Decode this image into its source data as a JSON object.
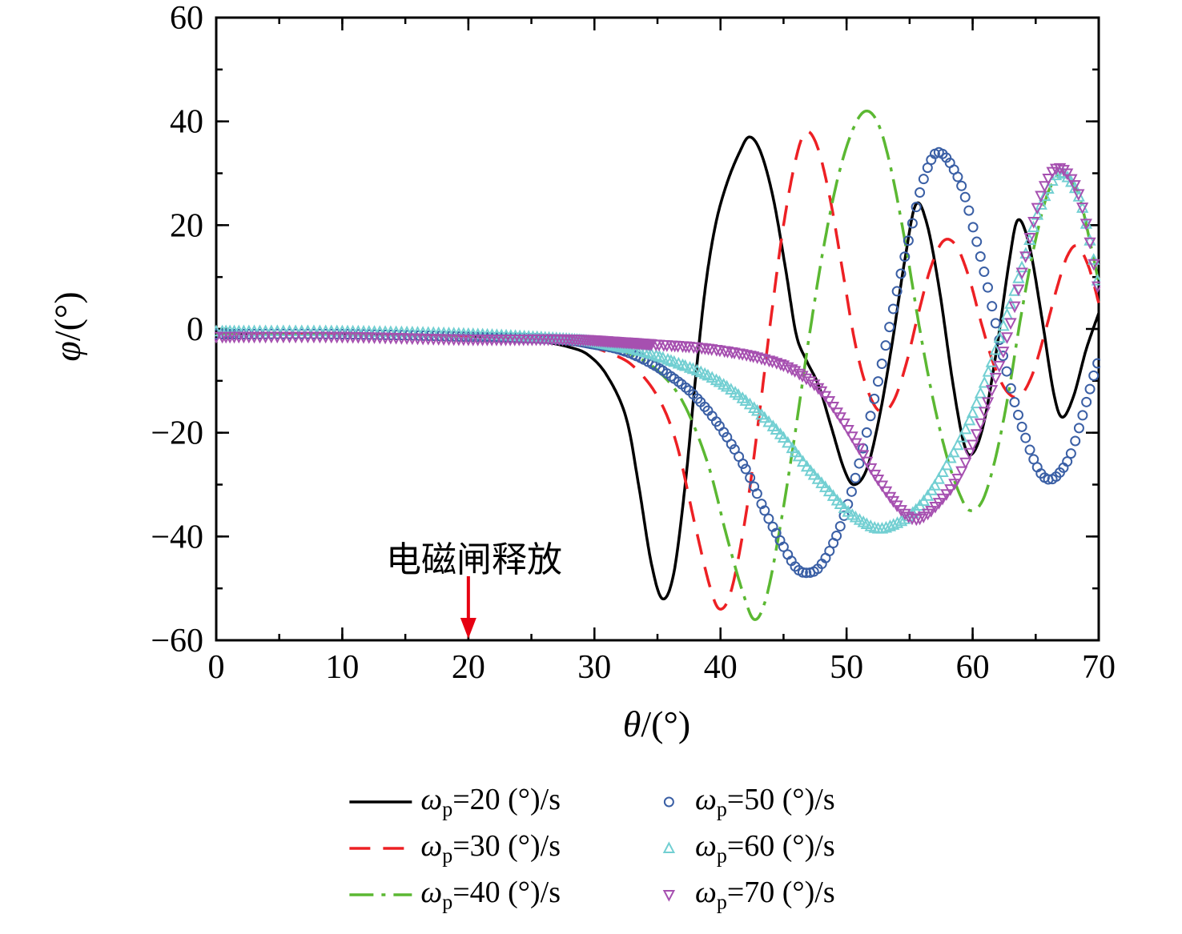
{
  "chart_data": {
    "type": "line",
    "title": "",
    "xlabel_symbol": "θ",
    "xlabel_rest": "/(°)",
    "ylabel_symbol": "φ",
    "ylabel_rest": "/(°)",
    "xlim": [
      0,
      70
    ],
    "ylim": [
      -60,
      60
    ],
    "xticks": [
      0,
      10,
      20,
      30,
      40,
      50,
      60,
      70
    ],
    "yticks": [
      -60,
      -40,
      -20,
      0,
      20,
      40,
      60
    ],
    "x_minor_step": 5,
    "y_minor_step": 10,
    "grid": false,
    "legend_position": "bottom",
    "annotation": {
      "text": "电磁闸释放",
      "x": 20,
      "arrow_color": "#e60012"
    },
    "series": [
      {
        "name": "omega-20",
        "symbol": "ω",
        "sub": "p",
        "label_rest": "=20 (°)/s",
        "color": "#000000",
        "style": "solid",
        "marker": "none",
        "points": [
          [
            0,
            -1
          ],
          [
            5,
            -1
          ],
          [
            10,
            -1
          ],
          [
            15,
            -1.2
          ],
          [
            20,
            -1.5
          ],
          [
            24,
            -2
          ],
          [
            26,
            -2.5
          ],
          [
            28,
            -3.5
          ],
          [
            29.5,
            -5
          ],
          [
            31,
            -9
          ],
          [
            32.5,
            -17
          ],
          [
            33.5,
            -30
          ],
          [
            34.5,
            -45
          ],
          [
            35.4,
            -52
          ],
          [
            36.3,
            -47
          ],
          [
            37.2,
            -30
          ],
          [
            38,
            -10
          ],
          [
            38.8,
            8
          ],
          [
            39.6,
            20
          ],
          [
            40.5,
            28
          ],
          [
            41.5,
            34
          ],
          [
            42.3,
            37
          ],
          [
            43.2,
            34
          ],
          [
            44.2,
            25
          ],
          [
            45.2,
            11
          ],
          [
            46,
            -1
          ],
          [
            46.8,
            -6
          ],
          [
            47.8,
            -11
          ],
          [
            48.8,
            -19
          ],
          [
            49.8,
            -27
          ],
          [
            50.6,
            -30
          ],
          [
            51.6,
            -27
          ],
          [
            52.6,
            -17
          ],
          [
            53.6,
            -3
          ],
          [
            54.6,
            13
          ],
          [
            55.5,
            24
          ],
          [
            56.4,
            20
          ],
          [
            57.4,
            7
          ],
          [
            58.4,
            -10
          ],
          [
            59.3,
            -22
          ],
          [
            60,
            -24
          ],
          [
            60.9,
            -18
          ],
          [
            61.9,
            -4
          ],
          [
            62.9,
            13
          ],
          [
            63.6,
            21
          ],
          [
            64.5,
            16
          ],
          [
            65.5,
            2
          ],
          [
            66.4,
            -12
          ],
          [
            67.1,
            -17
          ],
          [
            68,
            -13
          ],
          [
            69,
            -4
          ],
          [
            70,
            3
          ]
        ]
      },
      {
        "name": "omega-30",
        "symbol": "ω",
        "sub": "p",
        "label_rest": "=30 (°)/s",
        "color": "#ed2024",
        "style": "dashed",
        "marker": "none",
        "points": [
          [
            0,
            -1
          ],
          [
            10,
            -1
          ],
          [
            20,
            -1.5
          ],
          [
            26,
            -2
          ],
          [
            29,
            -3
          ],
          [
            31,
            -4.5
          ],
          [
            33,
            -7
          ],
          [
            35,
            -13
          ],
          [
            36.5,
            -22
          ],
          [
            38,
            -38
          ],
          [
            39.2,
            -50
          ],
          [
            40,
            -54
          ],
          [
            40.9,
            -50
          ],
          [
            42,
            -36
          ],
          [
            43,
            -18
          ],
          [
            44,
            2
          ],
          [
            45,
            20
          ],
          [
            46,
            33
          ],
          [
            46.8,
            38
          ],
          [
            47.7,
            35
          ],
          [
            48.7,
            25
          ],
          [
            49.7,
            11
          ],
          [
            50.7,
            -3
          ],
          [
            51.7,
            -12
          ],
          [
            52.7,
            -16
          ],
          [
            53.7,
            -14
          ],
          [
            54.7,
            -7
          ],
          [
            55.7,
            3
          ],
          [
            56.7,
            12
          ],
          [
            57.7,
            17
          ],
          [
            58.7,
            16
          ],
          [
            59.7,
            10
          ],
          [
            60.7,
            1
          ],
          [
            61.7,
            -7
          ],
          [
            62.7,
            -12
          ],
          [
            63.7,
            -13
          ],
          [
            64.7,
            -9
          ],
          [
            65.7,
            -1
          ],
          [
            66.7,
            8
          ],
          [
            67.5,
            14
          ],
          [
            68.3,
            16
          ],
          [
            69.2,
            12
          ],
          [
            70,
            5
          ]
        ]
      },
      {
        "name": "omega-40",
        "symbol": "ω",
        "sub": "p",
        "label_rest": "=40 (°)/s",
        "color": "#5bb832",
        "style": "dashdot",
        "marker": "none",
        "points": [
          [
            0,
            -1
          ],
          [
            10,
            -1
          ],
          [
            20,
            -1.5
          ],
          [
            28,
            -2.5
          ],
          [
            31,
            -3.5
          ],
          [
            33,
            -5
          ],
          [
            35,
            -8
          ],
          [
            37,
            -14
          ],
          [
            39,
            -26
          ],
          [
            40.5,
            -40
          ],
          [
            41.8,
            -51
          ],
          [
            42.7,
            -56
          ],
          [
            43.6,
            -52
          ],
          [
            44.6,
            -40
          ],
          [
            45.8,
            -22
          ],
          [
            47,
            -2
          ],
          [
            48.2,
            16
          ],
          [
            49.4,
            30
          ],
          [
            50.6,
            39
          ],
          [
            51.6,
            42
          ],
          [
            52.6,
            39
          ],
          [
            53.6,
            30
          ],
          [
            54.7,
            16
          ],
          [
            55.8,
            0
          ],
          [
            56.9,
            -14
          ],
          [
            58,
            -25
          ],
          [
            59,
            -32
          ],
          [
            59.8,
            -35
          ],
          [
            60.8,
            -33
          ],
          [
            61.8,
            -25
          ],
          [
            62.8,
            -13
          ],
          [
            63.8,
            2
          ],
          [
            64.8,
            15
          ],
          [
            65.8,
            25
          ],
          [
            66.6,
            29
          ],
          [
            67.4,
            30
          ],
          [
            68.4,
            26
          ],
          [
            69.2,
            18
          ],
          [
            70,
            9
          ]
        ]
      },
      {
        "name": "omega-50",
        "symbol": "ω",
        "sub": "p",
        "label_rest": "=50 (°)/s",
        "color": "#3a5fa5",
        "style": "none",
        "marker": "circle",
        "points": [
          [
            0,
            -1
          ],
          [
            10,
            -1
          ],
          [
            20,
            -1.5
          ],
          [
            27,
            -2
          ],
          [
            30,
            -3
          ],
          [
            32,
            -4
          ],
          [
            34,
            -6
          ],
          [
            36,
            -9
          ],
          [
            38,
            -13
          ],
          [
            40,
            -19
          ],
          [
            42,
            -27
          ],
          [
            43.5,
            -35
          ],
          [
            45,
            -42
          ],
          [
            46,
            -46
          ],
          [
            46.8,
            -47
          ],
          [
            47.8,
            -46
          ],
          [
            49,
            -41
          ],
          [
            50.2,
            -33
          ],
          [
            51.4,
            -22
          ],
          [
            52.6,
            -9
          ],
          [
            53.8,
            5
          ],
          [
            55,
            18
          ],
          [
            56,
            28
          ],
          [
            56.8,
            33
          ],
          [
            57.4,
            34
          ],
          [
            58.2,
            32
          ],
          [
            59.2,
            27
          ],
          [
            60.2,
            18
          ],
          [
            61.2,
            8
          ],
          [
            62.2,
            -3
          ],
          [
            63.2,
            -13
          ],
          [
            64.2,
            -21
          ],
          [
            65.2,
            -27
          ],
          [
            66,
            -29
          ],
          [
            66.8,
            -28
          ],
          [
            67.8,
            -24
          ],
          [
            68.8,
            -16
          ],
          [
            69.6,
            -9
          ],
          [
            70,
            -6
          ]
        ]
      },
      {
        "name": "omega-60",
        "symbol": "ω",
        "sub": "p",
        "label_rest": "=60 (°)/s",
        "color": "#72cfd2",
        "style": "none",
        "marker": "triangle-up",
        "points": [
          [
            0,
            -0.5
          ],
          [
            10,
            -0.5
          ],
          [
            20,
            -1
          ],
          [
            28,
            -2
          ],
          [
            31,
            -3
          ],
          [
            34,
            -4.5
          ],
          [
            37,
            -7
          ],
          [
            39,
            -9
          ],
          [
            41,
            -12
          ],
          [
            43,
            -16
          ],
          [
            45,
            -21
          ],
          [
            47,
            -27
          ],
          [
            48.5,
            -31
          ],
          [
            50,
            -35
          ],
          [
            51.5,
            -37.5
          ],
          [
            52.5,
            -38.5
          ],
          [
            53.5,
            -38
          ],
          [
            55,
            -36
          ],
          [
            56.5,
            -32
          ],
          [
            58,
            -26
          ],
          [
            59.5,
            -19
          ],
          [
            61,
            -10
          ],
          [
            62.5,
            1
          ],
          [
            63.8,
            11
          ],
          [
            65,
            21
          ],
          [
            66,
            27
          ],
          [
            66.8,
            30
          ],
          [
            67.6,
            29
          ],
          [
            68.5,
            25
          ],
          [
            69.3,
            17
          ],
          [
            70,
            8
          ]
        ]
      },
      {
        "name": "omega-70",
        "symbol": "ω",
        "sub": "p",
        "label_rest": "=70 (°)/s",
        "color": "#a650b0",
        "style": "none",
        "marker": "triangle-down",
        "points": [
          [
            0,
            -1.5
          ],
          [
            10,
            -1.5
          ],
          [
            20,
            -2
          ],
          [
            28,
            -2
          ],
          [
            32,
            -2.5
          ],
          [
            35,
            -3
          ],
          [
            38,
            -3.5
          ],
          [
            41,
            -4.5
          ],
          [
            43,
            -5.5
          ],
          [
            45,
            -7
          ],
          [
            46.5,
            -9
          ],
          [
            48,
            -12
          ],
          [
            49.5,
            -17
          ],
          [
            51,
            -23
          ],
          [
            52.5,
            -29
          ],
          [
            54,
            -34
          ],
          [
            55.2,
            -36.5
          ],
          [
            56.2,
            -36
          ],
          [
            57.5,
            -33
          ],
          [
            59,
            -28
          ],
          [
            60.5,
            -19
          ],
          [
            62,
            -8
          ],
          [
            63.2,
            3
          ],
          [
            64.2,
            14
          ],
          [
            65.2,
            24
          ],
          [
            66,
            29
          ],
          [
            66.7,
            31
          ],
          [
            67.5,
            30
          ],
          [
            68.4,
            26
          ],
          [
            69.2,
            18
          ],
          [
            70,
            7
          ]
        ]
      }
    ]
  }
}
